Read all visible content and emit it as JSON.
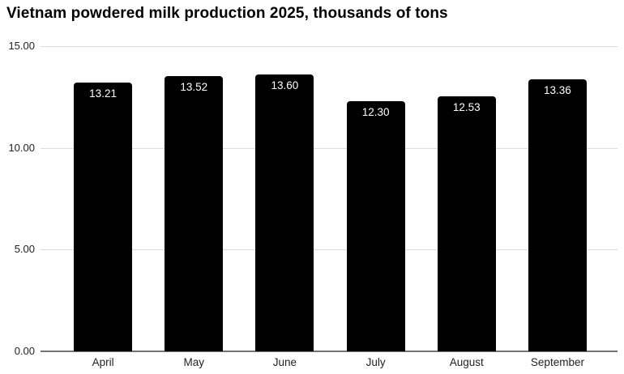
{
  "chart_data": {
    "type": "bar",
    "title": "Vietnam powdered milk production 2025, thousands of tons",
    "categories": [
      "April",
      "May",
      "June",
      "July",
      "August",
      "September"
    ],
    "values": [
      13.21,
      13.52,
      13.6,
      12.3,
      12.53,
      13.36
    ],
    "value_labels": [
      "13.21",
      "13.52",
      "13.60",
      "12.30",
      "12.53",
      "13.36"
    ],
    "xlabel": "",
    "ylabel": "",
    "ylim": [
      0,
      15
    ],
    "yticks": [
      {
        "label": "15.00",
        "value": 15
      },
      {
        "label": "10.00",
        "value": 10
      },
      {
        "label": "5.00",
        "value": 5
      },
      {
        "label": "0.00",
        "value": 0
      }
    ],
    "grid": true,
    "legend_position": "none",
    "colors": {
      "bar": "#000000",
      "bar_label": "#ffffff",
      "gridline": "#dcdcdc",
      "axis_line": "#757575",
      "tick_text": "#222222",
      "title_text": "#000000",
      "background": "#ffffff"
    }
  }
}
